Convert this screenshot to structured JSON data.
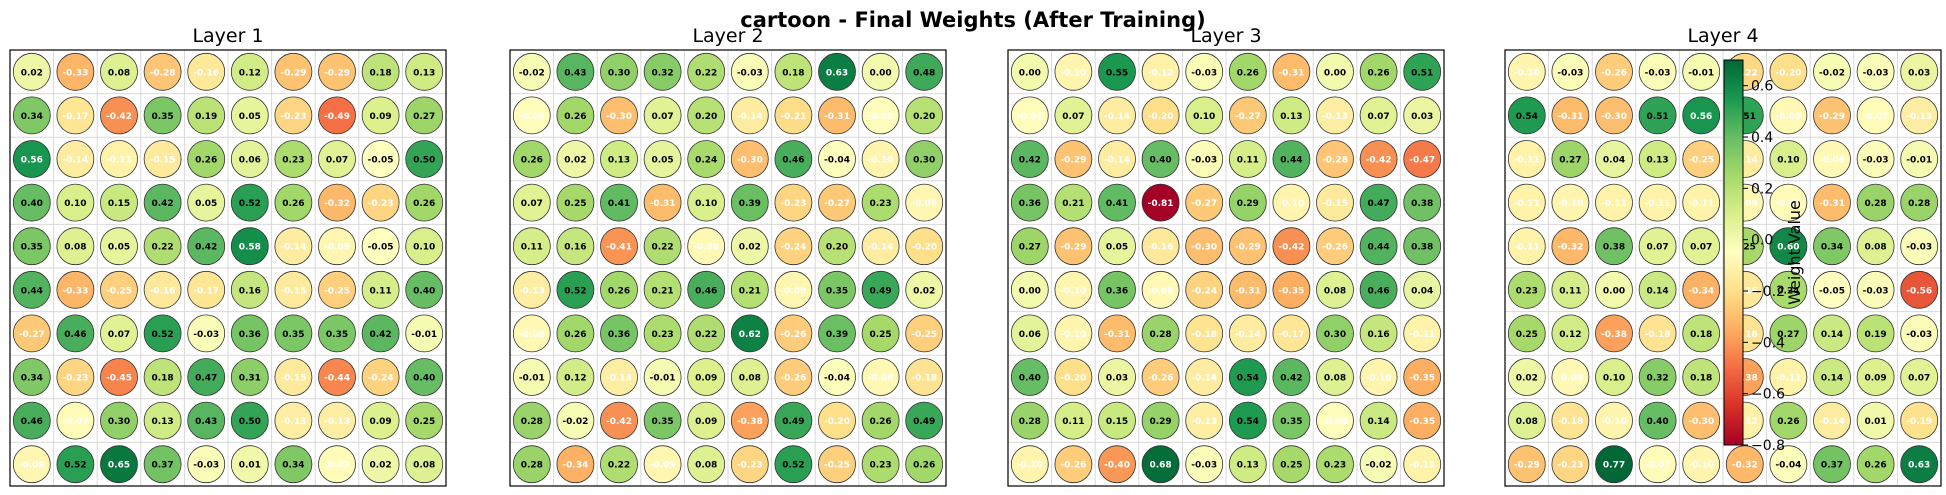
{
  "title": "cartoon - Final Weights (After Training)",
  "colorbar": {
    "label": "Weight Value",
    "ticks": [
      "0.6",
      "0.4",
      "0.2",
      "0.0",
      "−0.2",
      "−0.4",
      "−0.6",
      "−0.8"
    ],
    "range": [
      -0.8,
      0.7
    ]
  },
  "colors": {
    "colormap": "RdYlGn",
    "grid": "#d9d9d9",
    "frame": "#000000"
  },
  "chart_data": [
    {
      "type": "heatmap",
      "title": "Layer 1",
      "rows": 10,
      "cols": 10,
      "values": [
        [
          0.02,
          -0.33,
          0.08,
          -0.28,
          -0.16,
          0.12,
          -0.29,
          -0.29,
          0.18,
          0.13
        ],
        [
          0.34,
          -0.17,
          -0.42,
          0.35,
          0.19,
          0.05,
          -0.23,
          -0.49,
          0.09,
          0.27
        ],
        [
          0.56,
          -0.14,
          -0.11,
          -0.15,
          0.26,
          0.06,
          0.23,
          0.07,
          -0.05,
          0.5
        ],
        [
          0.4,
          0.1,
          0.15,
          0.42,
          0.05,
          0.52,
          0.26,
          -0.32,
          -0.23,
          0.26
        ],
        [
          0.35,
          0.08,
          0.05,
          0.22,
          0.42,
          0.58,
          -0.14,
          -0.09,
          -0.05,
          0.1
        ],
        [
          0.44,
          -0.33,
          -0.25,
          -0.16,
          -0.17,
          0.16,
          -0.15,
          -0.25,
          0.11,
          0.4
        ],
        [
          -0.27,
          0.46,
          0.07,
          0.52,
          -0.03,
          0.36,
          0.35,
          0.35,
          0.42,
          -0.01
        ],
        [
          0.34,
          -0.23,
          -0.45,
          0.18,
          0.47,
          0.31,
          -0.15,
          -0.44,
          -0.24,
          0.4
        ],
        [
          0.46,
          -0.07,
          0.3,
          0.13,
          0.43,
          0.5,
          -0.13,
          -0.13,
          0.09,
          0.25
        ],
        [
          -0.09,
          0.52,
          0.65,
          0.37,
          -0.03,
          0.01,
          0.34,
          -0.07,
          0.02,
          0.08
        ]
      ]
    },
    {
      "type": "heatmap",
      "title": "Layer 2",
      "rows": 10,
      "cols": 10,
      "values": [
        [
          -0.02,
          0.43,
          0.3,
          0.32,
          0.22,
          -0.03,
          0.18,
          0.63,
          0.0,
          0.48
        ],
        [
          -0.06,
          0.26,
          -0.3,
          0.07,
          0.2,
          -0.14,
          -0.21,
          -0.31,
          -0.06,
          0.2
        ],
        [
          0.26,
          0.02,
          0.13,
          0.05,
          0.24,
          -0.3,
          0.46,
          -0.04,
          -0.1,
          0.3
        ],
        [
          0.07,
          0.25,
          0.41,
          -0.31,
          0.1,
          0.39,
          -0.23,
          -0.27,
          0.23,
          -0.09
        ],
        [
          0.11,
          0.16,
          -0.41,
          0.22,
          -0.08,
          0.02,
          -0.24,
          0.2,
          -0.14,
          -0.2
        ],
        [
          -0.13,
          0.52,
          0.26,
          0.21,
          0.46,
          0.21,
          -0.09,
          0.35,
          0.49,
          0.02
        ],
        [
          -0.08,
          0.26,
          0.36,
          0.23,
          0.22,
          0.62,
          -0.26,
          0.39,
          0.25,
          -0.25
        ],
        [
          -0.01,
          0.12,
          -0.13,
          -0.01,
          0.09,
          0.08,
          -0.26,
          -0.04,
          -0.08,
          -0.18
        ],
        [
          0.28,
          -0.02,
          -0.42,
          0.35,
          0.09,
          -0.38,
          0.49,
          -0.2,
          0.26,
          0.49
        ],
        [
          0.28,
          -0.34,
          0.22,
          -0.09,
          0.08,
          -0.23,
          0.52,
          -0.25,
          0.23,
          0.26
        ]
      ]
    },
    {
      "type": "heatmap",
      "title": "Layer 3",
      "rows": 10,
      "cols": 10,
      "values": [
        [
          -0.0,
          -0.1,
          0.55,
          -0.12,
          -0.03,
          0.26,
          -0.31,
          -0.0,
          0.26,
          0.51
        ],
        [
          -0.06,
          0.07,
          -0.14,
          -0.2,
          0.1,
          -0.27,
          0.13,
          -0.13,
          0.07,
          0.03
        ],
        [
          0.42,
          -0.29,
          -0.14,
          0.4,
          -0.03,
          0.11,
          0.44,
          -0.28,
          -0.42,
          -0.47
        ],
        [
          0.36,
          0.21,
          0.41,
          -0.81,
          -0.27,
          0.29,
          -0.1,
          -0.15,
          0.47,
          0.38
        ],
        [
          0.27,
          -0.29,
          0.05,
          -0.16,
          -0.3,
          -0.29,
          -0.42,
          -0.26,
          0.44,
          0.38
        ],
        [
          0.0,
          -0.1,
          0.36,
          -0.08,
          -0.24,
          -0.31,
          -0.35,
          0.08,
          0.46,
          0.04
        ],
        [
          0.06,
          -0.1,
          -0.31,
          0.28,
          -0.18,
          -0.14,
          -0.17,
          0.3,
          0.16,
          -0.11
        ],
        [
          0.4,
          -0.2,
          0.03,
          -0.26,
          -0.14,
          0.54,
          0.42,
          0.08,
          -0.1,
          -0.35
        ],
        [
          0.28,
          0.11,
          0.15,
          0.29,
          -0.13,
          0.54,
          0.35,
          -0.06,
          0.14,
          -0.35
        ],
        [
          -0.1,
          -0.26,
          -0.4,
          0.68,
          -0.03,
          0.13,
          0.25,
          0.23,
          -0.02,
          -0.11
        ]
      ]
    },
    {
      "type": "heatmap",
      "title": "Layer 4",
      "rows": 10,
      "cols": 10,
      "values": [
        [
          -0.1,
          -0.03,
          -0.26,
          -0.03,
          -0.01,
          -0.22,
          -0.2,
          -0.02,
          -0.03,
          0.03
        ],
        [
          0.54,
          -0.31,
          -0.3,
          0.51,
          0.56,
          0.51,
          -0.08,
          -0.29,
          -0.07,
          -0.13
        ],
        [
          -0.11,
          0.27,
          0.04,
          0.13,
          -0.25,
          -0.14,
          0.1,
          -0.08,
          -0.03,
          -0.01
        ],
        [
          -0.11,
          -0.1,
          -0.11,
          -0.11,
          -0.11,
          -0.09,
          -0.07,
          -0.31,
          0.28,
          0.28
        ],
        [
          -0.11,
          -0.32,
          0.38,
          0.07,
          0.07,
          0.25,
          0.6,
          0.34,
          0.08,
          -0.03
        ],
        [
          0.23,
          0.11,
          0.0,
          0.14,
          -0.34,
          -0.16,
          0.24,
          -0.05,
          -0.03,
          -0.56
        ],
        [
          0.25,
          0.12,
          -0.38,
          -0.18,
          0.18,
          -0.18,
          0.27,
          0.14,
          0.19,
          -0.03
        ],
        [
          0.02,
          -0.08,
          0.1,
          0.32,
          0.18,
          -0.38,
          -0.11,
          0.14,
          0.09,
          0.07
        ],
        [
          0.08,
          -0.18,
          -0.1,
          0.4,
          -0.3,
          -0.12,
          0.26,
          -0.14,
          0.01,
          -0.19
        ],
        [
          -0.29,
          -0.23,
          0.77,
          -0.07,
          -0.1,
          -0.32,
          -0.04,
          0.37,
          0.26,
          0.63
        ]
      ]
    }
  ]
}
